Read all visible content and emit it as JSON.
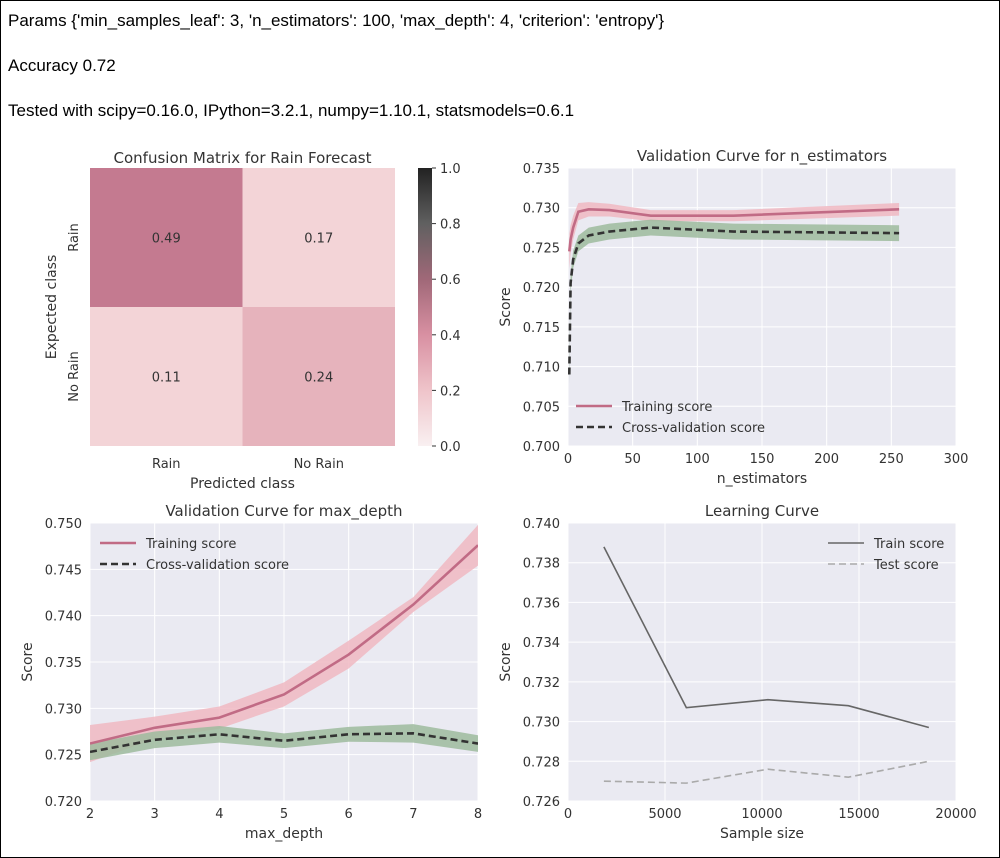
{
  "header": {
    "params_line": "Params {'min_samples_leaf': 3, 'n_estimators': 100, 'max_depth': 4, 'criterion': 'entropy'}",
    "accuracy_line": "Accuracy 0.72",
    "tested_line": "Tested with scipy=0.16.0, IPython=3.2.1, numpy=1.10.1, statsmodels=0.6.1"
  },
  "colors": {
    "train": "#c16b85",
    "train_band": "#f0b8c2",
    "cv": "#333333",
    "cv_band": "#9dbb9d",
    "axes_bg": "#eaeaf2",
    "grid": "#ffffff",
    "text": "#333333",
    "cm_high": "#c47a90",
    "cm_mid": "#e6b3bc",
    "cm_low": "#f3d4d7"
  },
  "chart_data": [
    {
      "id": "confusion",
      "type": "heatmap",
      "title": "Confusion Matrix for Rain Forecast",
      "xlabel": "Predicted class",
      "ylabel": "Expected class",
      "x_categories": [
        "Rain",
        "No Rain"
      ],
      "y_categories": [
        "Rain",
        "No Rain"
      ],
      "matrix": [
        [
          0.49,
          0.17
        ],
        [
          0.11,
          0.24
        ]
      ],
      "colorbar": {
        "range": [
          0,
          1
        ],
        "ticks": [
          "0.0",
          "0.2",
          "0.4",
          "0.6",
          "0.8",
          "1.0"
        ]
      }
    },
    {
      "id": "vc_n_estimators",
      "type": "line",
      "title": "Validation Curve for n_estimators",
      "xlabel": "n_estimators",
      "ylabel": "Score",
      "xlim": [
        0,
        300
      ],
      "ylim": [
        0.7,
        0.735
      ],
      "xticks": [
        "0",
        "50",
        "100",
        "150",
        "200",
        "250",
        "300"
      ],
      "yticks": [
        "0.700",
        "0.705",
        "0.710",
        "0.715",
        "0.720",
        "0.725",
        "0.730",
        "0.735"
      ],
      "legend": "lower-left",
      "x": [
        1,
        2,
        4,
        8,
        16,
        32,
        64,
        128,
        256
      ],
      "series": [
        {
          "name": "Training score",
          "values": [
            0.7245,
            0.726,
            0.7275,
            0.7295,
            0.7298,
            0.7297,
            0.729,
            0.729,
            0.7298
          ],
          "band": [
            0.0022,
            0.0018,
            0.0015,
            0.0011,
            0.0009,
            0.0008,
            0.0007,
            0.0007,
            0.0008
          ]
        },
        {
          "name": "Cross-validation score",
          "values": [
            0.709,
            0.7205,
            0.7235,
            0.7255,
            0.7265,
            0.727,
            0.7275,
            0.727,
            0.7268
          ],
          "band": [
            0.0012,
            0.0011,
            0.0011,
            0.001,
            0.001,
            0.001,
            0.001,
            0.001,
            0.001
          ]
        }
      ]
    },
    {
      "id": "vc_max_depth",
      "type": "line",
      "title": "Validation Curve for max_depth",
      "xlabel": "max_depth",
      "ylabel": "Score",
      "xlim": [
        2,
        8
      ],
      "ylim": [
        0.72,
        0.75
      ],
      "xticks": [
        "2",
        "3",
        "4",
        "5",
        "6",
        "7",
        "8"
      ],
      "yticks": [
        "0.720",
        "0.725",
        "0.730",
        "0.735",
        "0.740",
        "0.745",
        "0.750"
      ],
      "legend": "upper-left",
      "x": [
        2,
        3,
        4,
        5,
        6,
        7,
        8
      ],
      "series": [
        {
          "name": "Training score",
          "values": [
            0.7262,
            0.7279,
            0.729,
            0.7315,
            0.7358,
            0.7412,
            0.7476
          ],
          "band": [
            0.002,
            0.0012,
            0.0012,
            0.0013,
            0.0015,
            0.0008,
            0.0022
          ]
        },
        {
          "name": "Cross-validation score",
          "values": [
            0.7253,
            0.7266,
            0.7272,
            0.7265,
            0.7272,
            0.7273,
            0.7262
          ],
          "band": [
            0.0009,
            0.0009,
            0.0009,
            0.0008,
            0.0008,
            0.001,
            0.0009
          ]
        }
      ]
    },
    {
      "id": "learning_curve",
      "type": "line",
      "title": "Learning Curve",
      "xlabel": "Sample size",
      "ylabel": "Score",
      "xlim": [
        0,
        20000
      ],
      "ylim": [
        0.726,
        0.74
      ],
      "xticks": [
        "0",
        "5000",
        "10000",
        "15000",
        "20000"
      ],
      "yticks": [
        "0.726",
        "0.728",
        "0.730",
        "0.732",
        "0.734",
        "0.736",
        "0.738",
        "0.740"
      ],
      "legend": "upper-right",
      "x": [
        1850,
        6100,
        10300,
        14450,
        18600
      ],
      "series": [
        {
          "name": "Train score",
          "values": [
            0.7388,
            0.7307,
            0.7311,
            0.7308,
            0.7297
          ]
        },
        {
          "name": "Test score",
          "values": [
            0.727,
            0.7269,
            0.7276,
            0.7272,
            0.728
          ]
        }
      ]
    }
  ]
}
